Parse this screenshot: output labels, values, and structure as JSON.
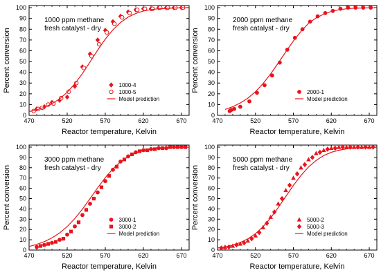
{
  "chart_data": [
    {
      "type": "scatter",
      "annotation": [
        "1000 ppm methane",
        "fresh catalyst - dry"
      ],
      "xlabel": "Reactor temperature, Kelvin",
      "ylabel": "Percent conversion",
      "xlim": [
        470,
        680
      ],
      "ylim": [
        0,
        102
      ],
      "xticks": [
        470,
        520,
        570,
        620,
        670
      ],
      "yticks": [
        0,
        10,
        20,
        30,
        40,
        50,
        60,
        70,
        80,
        90,
        100
      ],
      "legend_position": "lower-right",
      "series": [
        {
          "name": "1000-4",
          "marker": "diamond-filled",
          "color": "#e8141c",
          "x": [
            480,
            490,
            500,
            510,
            520,
            530,
            540,
            550,
            560,
            570,
            580,
            590,
            600,
            610,
            620,
            630,
            640,
            650,
            660,
            670
          ],
          "y": [
            6,
            8,
            12,
            14,
            17,
            27,
            45,
            57,
            70,
            79,
            87,
            92,
            96,
            98,
            99,
            99,
            100,
            100,
            100,
            100
          ]
        },
        {
          "name": "1000-5",
          "marker": "circle-open",
          "color": "#e8141c",
          "x": [
            476,
            482,
            487,
            495,
            502,
            512,
            522,
            532,
            542,
            552,
            562,
            572,
            582,
            592,
            602,
            612,
            622,
            632,
            642,
            652,
            662,
            672
          ],
          "y": [
            4,
            6,
            7,
            10,
            11,
            16,
            22,
            30,
            44,
            55,
            66,
            77,
            85,
            91,
            95,
            98,
            99,
            99,
            100,
            100,
            100,
            100
          ]
        },
        {
          "name": "Model prediction",
          "marker": "line",
          "color": "#e8141c",
          "x": [
            470,
            480,
            490,
            500,
            510,
            520,
            530,
            540,
            550,
            560,
            570,
            580,
            590,
            600,
            610,
            620,
            630,
            640,
            650,
            660,
            670,
            680
          ],
          "y": [
            3.5,
            5.2,
            7.5,
            10.8,
            15.3,
            21.4,
            29.3,
            38.9,
            49.6,
            60.6,
            70.8,
            79.5,
            86.3,
            91.3,
            94.7,
            96.9,
            98.2,
            99.0,
            99.4,
            99.7,
            99.8,
            99.9
          ]
        }
      ]
    },
    {
      "type": "scatter",
      "annotation": [
        "2000 ppm methane",
        "fresh catalyst - dry"
      ],
      "xlabel": "Reactor temperature, Kelvin",
      "ylabel": "Percent conversion",
      "xlim": [
        470,
        680
      ],
      "ylim": [
        0,
        102
      ],
      "xticks": [
        470,
        520,
        570,
        620,
        670
      ],
      "yticks": [
        0,
        10,
        20,
        30,
        40,
        50,
        60,
        70,
        80,
        90,
        100
      ],
      "legend_position": "lower-right",
      "series": [
        {
          "name": "2000-1",
          "marker": "circle-filled",
          "color": "#e8141c",
          "x": [
            486,
            488,
            492,
            500,
            512,
            522,
            532,
            542,
            552,
            562,
            572,
            582,
            592,
            602,
            612,
            622,
            632,
            642,
            652,
            662,
            672
          ],
          "y": [
            4,
            5,
            6,
            8,
            13,
            21,
            28,
            37,
            49,
            61,
            72,
            80,
            87,
            92,
            95,
            97,
            99,
            100,
            100,
            100,
            100
          ]
        },
        {
          "name": "Model prediction",
          "marker": "line",
          "color": "#e8141c",
          "x": [
            480,
            490,
            500,
            510,
            520,
            530,
            540,
            550,
            560,
            570,
            580,
            590,
            600,
            610,
            620,
            630,
            640,
            650,
            660,
            670,
            680
          ],
          "y": [
            5.5,
            8.0,
            11.5,
            16.0,
            22.0,
            29.5,
            38.5,
            48.5,
            59.0,
            69.0,
            78.0,
            85.5,
            90.5,
            94.0,
            96.5,
            98.0,
            99.0,
            99.5,
            99.7,
            99.8,
            99.9
          ]
        }
      ]
    },
    {
      "type": "scatter",
      "annotation": [
        "3000 ppm methane",
        "fresh catalyst - dry"
      ],
      "xlabel": "Reactor temperature, Kelvin",
      "ylabel": "Percent conversion",
      "xlim": [
        470,
        680
      ],
      "ylim": [
        0,
        102
      ],
      "xticks": [
        470,
        520,
        570,
        620,
        670
      ],
      "yticks": [
        0,
        10,
        20,
        30,
        40,
        50,
        60,
        70,
        80,
        90,
        100
      ],
      "legend_position": "lower-right",
      "series": [
        {
          "name": "3000-1",
          "marker": "circle-filled",
          "color": "#e8141c",
          "x": [
            480,
            490,
            500,
            510,
            520,
            530,
            540,
            550,
            560,
            570,
            580,
            590,
            600,
            610,
            620,
            630,
            640,
            650,
            660,
            670
          ],
          "y": [
            3,
            5,
            7,
            10,
            15,
            23,
            34,
            45,
            56,
            67,
            78,
            86,
            91,
            95,
            97,
            98,
            99,
            99,
            100,
            100
          ]
        },
        {
          "name": "3000-2",
          "marker": "square-filled",
          "color": "#e8141c",
          "x": [
            485,
            495,
            505,
            515,
            525,
            535,
            545,
            555,
            565,
            575,
            585,
            595,
            605,
            615,
            625,
            635,
            645,
            655,
            665,
            675
          ],
          "y": [
            4,
            6,
            8,
            11,
            18,
            27,
            39,
            50,
            61,
            72,
            81,
            88,
            93,
            96,
            97,
            98,
            99,
            100,
            100,
            100
          ]
        },
        {
          "name": "Model prediction",
          "marker": "line",
          "color": "#e8141c",
          "x": [
            470,
            480,
            490,
            500,
            510,
            520,
            530,
            540,
            550,
            560,
            570,
            580,
            590,
            600,
            610,
            620,
            630,
            640,
            650,
            660,
            670,
            680
          ],
          "y": [
            3.5,
            5.5,
            8.2,
            11.8,
            16.6,
            22.8,
            30.6,
            39.8,
            50.0,
            60.5,
            70.4,
            78.9,
            85.7,
            90.7,
            94.2,
            96.5,
            97.9,
            98.8,
            99.3,
            99.6,
            99.8,
            99.9
          ]
        }
      ]
    },
    {
      "type": "scatter",
      "annotation": [
        "5000 ppm methane",
        "fresh catalyst - dry"
      ],
      "xlabel": "Reactor temperature, Kelvin",
      "ylabel": "Percent conversion",
      "xlim": [
        470,
        680
      ],
      "ylim": [
        0,
        102
      ],
      "xticks": [
        470,
        520,
        570,
        620,
        670
      ],
      "yticks": [
        0,
        10,
        20,
        30,
        40,
        50,
        60,
        70,
        80,
        90,
        100
      ],
      "legend_position": "lower-right",
      "series": [
        {
          "name": "5000-2",
          "marker": "triangle-filled",
          "color": "#e8141c",
          "x": [
            480,
            490,
            500,
            510,
            520,
            530,
            540,
            550,
            560,
            570,
            580,
            590,
            600,
            610,
            620,
            630,
            640,
            650,
            660,
            670
          ],
          "y": [
            3,
            4,
            6,
            9,
            14,
            22,
            32,
            45,
            58,
            70,
            80,
            88,
            94,
            97,
            99,
            100,
            100,
            100,
            100,
            100
          ]
        },
        {
          "name": "5000-3",
          "marker": "diamond-filled",
          "color": "#e8141c",
          "x": [
            475,
            485,
            495,
            505,
            515,
            525,
            535,
            545,
            555,
            565,
            575,
            585,
            595,
            605,
            615,
            625,
            635,
            645,
            655,
            665,
            675
          ],
          "y": [
            2,
            3,
            5,
            7,
            11,
            17,
            26,
            37,
            50,
            63,
            74,
            83,
            90,
            95,
            98,
            99,
            100,
            100,
            100,
            100,
            100
          ]
        },
        {
          "name": "Model prediction",
          "marker": "line",
          "color": "#e8141c",
          "x": [
            470,
            480,
            490,
            500,
            510,
            520,
            530,
            540,
            550,
            560,
            570,
            580,
            590,
            600,
            610,
            620,
            630,
            640,
            650,
            660,
            670,
            680
          ],
          "y": [
            2.0,
            3.1,
            4.8,
            7.3,
            10.9,
            15.9,
            22.7,
            31.2,
            41.3,
            52.1,
            62.8,
            72.5,
            80.7,
            87.1,
            91.8,
            95.0,
            97.0,
            98.3,
            99.0,
            99.4,
            99.7,
            99.8
          ]
        }
      ]
    }
  ]
}
